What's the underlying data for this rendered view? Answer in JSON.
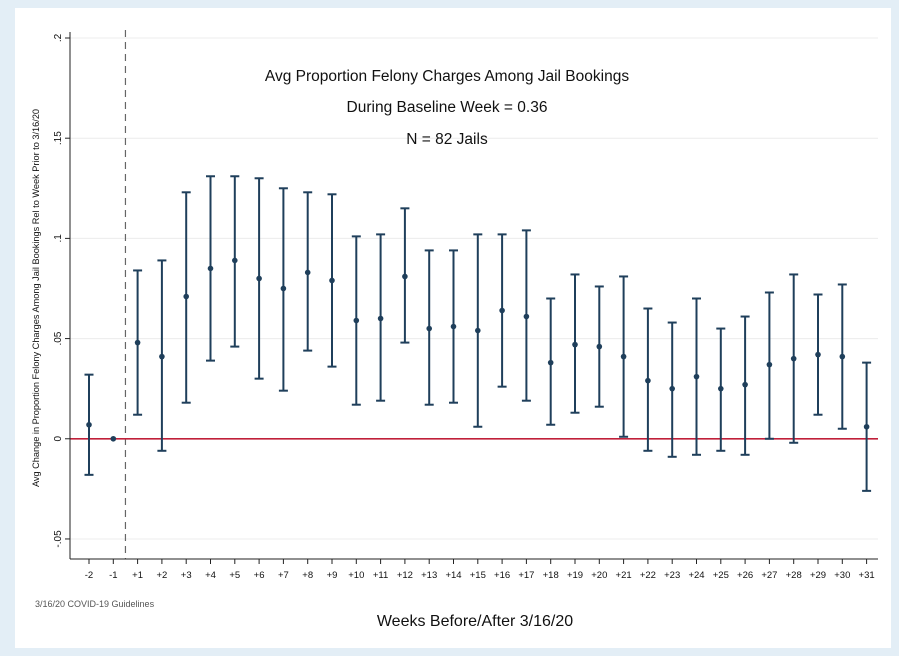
{
  "chart_data": {
    "type": "scatter",
    "title_lines": [
      "Avg Proportion Felony Charges Among Jail Bookings",
      "During Baseline Week = 0.36",
      "N = 82 Jails"
    ],
    "xlabel": "Weeks Before/After 3/16/20",
    "ylabel": "Avg Change in Proportion Felony Charges Among Jail Bookings Rel to Week Prior to 3/16/20",
    "vline_label": "3/16/20 COVID-19 Guidelines",
    "ylim": [
      -0.06,
      0.2
    ],
    "yticks": [
      -0.05,
      0,
      0.05,
      0.1,
      0.15,
      0.2
    ],
    "ytick_labels": [
      "-.05",
      "0",
      ".05",
      ".1",
      ".15",
      ".2"
    ],
    "grid": true,
    "reference_line": {
      "y": 0,
      "color": "#c0203a"
    },
    "marker_color": "#1f3f5b",
    "categories": [
      "-2",
      "-1",
      "+1",
      "+2",
      "+3",
      "+4",
      "+5",
      "+6",
      "+7",
      "+8",
      "+9",
      "+10",
      "+11",
      "+12",
      "+13",
      "+14",
      "+15",
      "+16",
      "+17",
      "+18",
      "+19",
      "+20",
      "+21",
      "+22",
      "+23",
      "+24",
      "+25",
      "+26",
      "+27",
      "+28",
      "+29",
      "+30",
      "+31"
    ],
    "series": [
      {
        "estimate": [
          0.007,
          0.0,
          0.048,
          0.041,
          0.071,
          0.085,
          0.089,
          0.08,
          0.075,
          0.083,
          0.079,
          0.059,
          0.06,
          0.081,
          0.055,
          0.056,
          0.054,
          0.064,
          0.061,
          0.038,
          0.047,
          0.046,
          0.041,
          0.029,
          0.025,
          0.031,
          0.025,
          0.027,
          0.037,
          0.04,
          0.042,
          0.041,
          0.006
        ],
        "ci_low": [
          -0.018,
          null,
          0.012,
          -0.006,
          0.018,
          0.039,
          0.046,
          0.03,
          0.024,
          0.044,
          0.036,
          0.017,
          0.019,
          0.048,
          0.017,
          0.018,
          0.006,
          0.026,
          0.019,
          0.007,
          0.013,
          0.016,
          0.001,
          -0.006,
          -0.009,
          -0.008,
          -0.006,
          -0.008,
          0.0,
          -0.002,
          0.012,
          0.005,
          -0.026
        ],
        "ci_high": [
          0.032,
          null,
          0.084,
          0.089,
          0.123,
          0.131,
          0.131,
          0.13,
          0.125,
          0.123,
          0.122,
          0.101,
          0.102,
          0.115,
          0.094,
          0.094,
          0.102,
          0.102,
          0.104,
          0.07,
          0.082,
          0.076,
          0.081,
          0.065,
          0.058,
          0.07,
          0.055,
          0.061,
          0.073,
          0.082,
          0.072,
          0.077,
          0.038
        ]
      }
    ]
  }
}
